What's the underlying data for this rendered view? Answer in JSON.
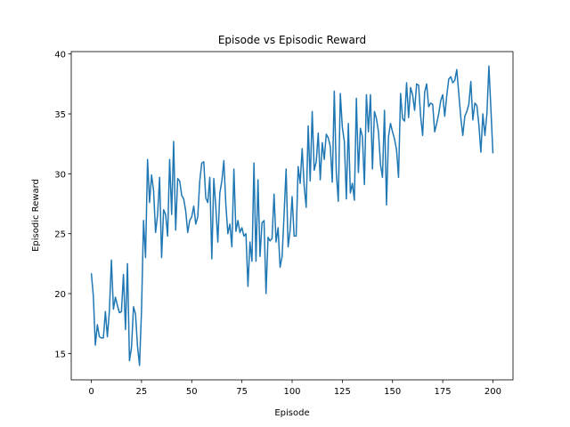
{
  "chart_data": {
    "type": "line",
    "title": "Episode vs Episodic Reward",
    "x_label": "Episode",
    "y_label": "Episodic Reward",
    "x": [
      0,
      1,
      2,
      3,
      4,
      5,
      6,
      7,
      8,
      9,
      10,
      11,
      12,
      13,
      14,
      15,
      16,
      17,
      18,
      19,
      20,
      21,
      22,
      23,
      24,
      25,
      26,
      27,
      28,
      29,
      30,
      31,
      32,
      33,
      34,
      35,
      36,
      37,
      38,
      39,
      40,
      41,
      42,
      43,
      44,
      45,
      46,
      47,
      48,
      49,
      50,
      51,
      52,
      53,
      54,
      55,
      56,
      57,
      58,
      59,
      60,
      61,
      62,
      63,
      64,
      65,
      66,
      67,
      68,
      69,
      70,
      71,
      72,
      73,
      74,
      75,
      76,
      77,
      78,
      79,
      80,
      81,
      82,
      83,
      84,
      85,
      86,
      87,
      88,
      89,
      90,
      91,
      92,
      93,
      94,
      95,
      96,
      97,
      98,
      99,
      100,
      101,
      102,
      103,
      104,
      105,
      106,
      107,
      108,
      109,
      110,
      111,
      112,
      113,
      114,
      115,
      116,
      117,
      118,
      119,
      120,
      121,
      122,
      123,
      124,
      125,
      126,
      127,
      128,
      129,
      130,
      131,
      132,
      133,
      134,
      135,
      136,
      137,
      138,
      139,
      140,
      141,
      142,
      143,
      144,
      145,
      146,
      147,
      148,
      149,
      150,
      151,
      152,
      153,
      154,
      155,
      156,
      157,
      158,
      159,
      160,
      161,
      162,
      163,
      164,
      165,
      166,
      167,
      168,
      169,
      170,
      171,
      172,
      173,
      174,
      175,
      176,
      177,
      178,
      179,
      180,
      181,
      182,
      183,
      184,
      185,
      186,
      187,
      188,
      189,
      190,
      191,
      192,
      193,
      194,
      195,
      196,
      197,
      198,
      199,
      200
    ],
    "series": [
      {
        "color": "#1f77b4",
        "values": [
          21.7,
          19.8,
          15.7,
          17.4,
          16.4,
          16.3,
          16.3,
          18.5,
          16.4,
          18.6,
          22.8,
          18.7,
          19.7,
          19.0,
          18.4,
          18.5,
          21.6,
          17.0,
          22.5,
          14.4,
          15.5,
          18.9,
          18.3,
          15.6,
          14.0,
          18.6,
          26.1,
          23.0,
          31.2,
          27.6,
          29.9,
          28.6,
          25.1,
          26.6,
          29.7,
          23.0,
          27.0,
          26.6,
          24.8,
          31.2,
          26.6,
          32.7,
          25.3,
          29.6,
          29.4,
          28.2,
          27.9,
          26.9,
          25.1,
          26.1,
          26.4,
          27.3,
          25.8,
          26.4,
          29.4,
          30.9,
          31.0,
          28.0,
          27.6,
          29.7,
          22.9,
          29.6,
          27.2,
          24.3,
          28.4,
          29.4,
          31.1,
          27.4,
          25.0,
          25.8,
          23.9,
          30.4,
          25.2,
          26.1,
          25.1,
          25.5,
          24.8,
          25.0,
          20.6,
          24.3,
          22.7,
          30.9,
          22.7,
          29.5,
          23.1,
          25.9,
          26.1,
          20.0,
          24.7,
          24.4,
          24.6,
          28.3,
          24.3,
          25.5,
          22.2,
          23.1,
          26.6,
          30.4,
          23.9,
          25.3,
          28.1,
          24.8,
          24.8,
          30.6,
          29.2,
          32.1,
          29.0,
          27.2,
          34.0,
          29.4,
          35.2,
          30.3,
          31.0,
          33.4,
          29.5,
          32.6,
          31.2,
          33.3,
          33.0,
          32.3,
          29.3,
          36.9,
          30.1,
          27.7,
          36.7,
          33.9,
          32.7,
          27.9,
          34.2,
          28.4,
          29.2,
          27.8,
          36.3,
          30.1,
          33.8,
          33.1,
          29.1,
          36.6,
          33.5,
          36.6,
          30.4,
          35.2,
          34.6,
          33.5,
          30.8,
          29.7,
          35.3,
          27.4,
          33.1,
          34.2,
          33.5,
          32.9,
          32.0,
          29.7,
          36.7,
          34.6,
          34.4,
          37.6,
          34.7,
          37.2,
          36.6,
          35.3,
          37.5,
          37.4,
          34.8,
          33.2,
          36.8,
          37.5,
          35.6,
          35.9,
          35.8,
          33.5,
          34.2,
          35.0,
          36.1,
          36.6,
          34.8,
          36.5,
          37.9,
          38.1,
          37.6,
          37.8,
          38.7,
          36.7,
          34.7,
          33.2,
          34.8,
          35.2,
          35.8,
          37.7,
          34.5,
          35.9,
          35.7,
          34.1,
          31.8,
          35.0,
          33.2,
          35.0,
          39.0,
          35.4,
          31.7
        ]
      }
    ],
    "xlim": [
      -10,
      210
    ],
    "ylim": [
      12.8,
      40.2
    ],
    "xticks": [
      0,
      25,
      50,
      75,
      100,
      125,
      150,
      175,
      200
    ],
    "yticks": [
      15,
      20,
      25,
      30,
      35,
      40
    ]
  }
}
